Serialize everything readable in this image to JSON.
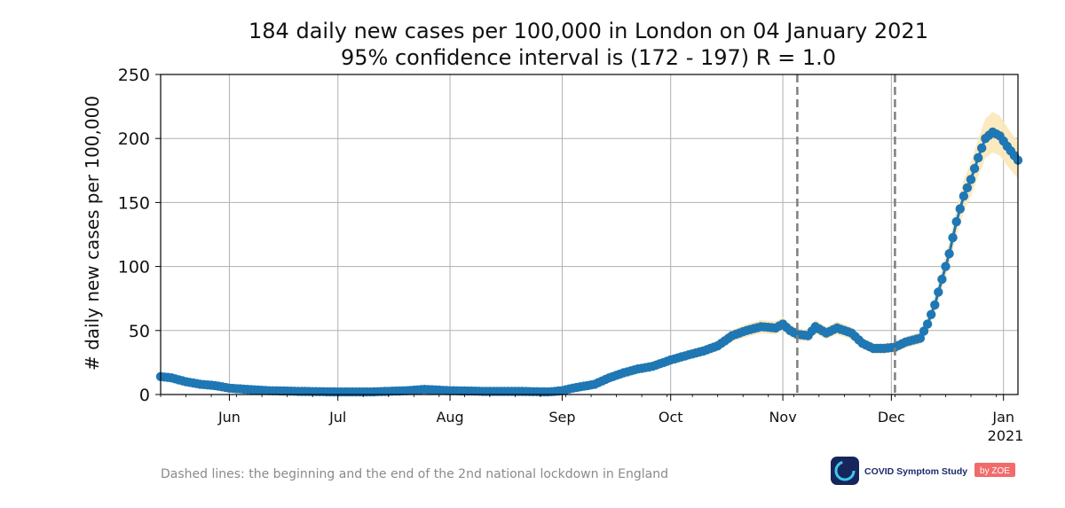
{
  "chart_data": {
    "type": "line",
    "title": "184 daily new cases per 100,000 in London on 04 January 2021",
    "subtitle": "95% confidence interval is (172 - 197) R = 1.0",
    "ylabel": "# daily new cases per 100,000",
    "xlabel": "",
    "ylim": [
      0,
      250
    ],
    "yticks": [
      0,
      50,
      100,
      150,
      200,
      250
    ],
    "xlim": [
      "2020-05-13",
      "2021-01-05"
    ],
    "xticks": [
      {
        "date": "2020-06-01",
        "label": "Jun"
      },
      {
        "date": "2020-07-01",
        "label": "Jul"
      },
      {
        "date": "2020-08-01",
        "label": "Aug"
      },
      {
        "date": "2020-09-01",
        "label": "Sep"
      },
      {
        "date": "2020-10-01",
        "label": "Oct"
      },
      {
        "date": "2020-11-01",
        "label": "Nov"
      },
      {
        "date": "2020-12-01",
        "label": "Dec"
      },
      {
        "date": "2021-01-01",
        "label": "Jan"
      }
    ],
    "xtick_year_label": "2021",
    "grid": true,
    "vlines": [
      "2020-11-05",
      "2020-12-02"
    ],
    "series": [
      {
        "color": "#1f77b4",
        "band_color": "#fbe8b8",
        "points": [
          [
            "2020-05-13",
            14
          ],
          [
            "2020-05-16",
            13
          ],
          [
            "2020-05-20",
            10
          ],
          [
            "2020-05-24",
            8
          ],
          [
            "2020-05-28",
            7
          ],
          [
            "2020-06-01",
            5
          ],
          [
            "2020-06-06",
            4
          ],
          [
            "2020-06-12",
            3
          ],
          [
            "2020-06-20",
            2.5
          ],
          [
            "2020-07-01",
            2
          ],
          [
            "2020-07-10",
            2
          ],
          [
            "2020-07-20",
            3
          ],
          [
            "2020-07-25",
            4
          ],
          [
            "2020-08-01",
            3
          ],
          [
            "2020-08-10",
            2.5
          ],
          [
            "2020-08-20",
            2.5
          ],
          [
            "2020-08-28",
            2
          ],
          [
            "2020-09-01",
            3
          ],
          [
            "2020-09-04",
            5
          ],
          [
            "2020-09-10",
            8
          ],
          [
            "2020-09-14",
            13
          ],
          [
            "2020-09-18",
            17
          ],
          [
            "2020-09-22",
            20
          ],
          [
            "2020-09-26",
            22
          ],
          [
            "2020-10-01",
            27
          ],
          [
            "2020-10-06",
            31
          ],
          [
            "2020-10-10",
            34
          ],
          [
            "2020-10-14",
            38
          ],
          [
            "2020-10-18",
            46
          ],
          [
            "2020-10-22",
            50
          ],
          [
            "2020-10-26",
            53
          ],
          [
            "2020-10-30",
            52
          ],
          [
            "2020-11-01",
            55
          ],
          [
            "2020-11-03",
            50
          ],
          [
            "2020-11-05",
            47
          ],
          [
            "2020-11-08",
            46
          ],
          [
            "2020-11-10",
            53
          ],
          [
            "2020-11-13",
            48
          ],
          [
            "2020-11-16",
            52
          ],
          [
            "2020-11-20",
            48
          ],
          [
            "2020-11-23",
            40
          ],
          [
            "2020-11-26",
            36
          ],
          [
            "2020-11-29",
            36
          ],
          [
            "2020-12-02",
            37
          ],
          [
            "2020-12-05",
            41
          ],
          [
            "2020-12-09",
            44
          ],
          [
            "2020-12-11",
            55
          ],
          [
            "2020-12-13",
            70
          ],
          [
            "2020-12-15",
            90
          ],
          [
            "2020-12-17",
            110
          ],
          [
            "2020-12-19",
            135
          ],
          [
            "2020-12-21",
            155
          ],
          [
            "2020-12-23",
            168
          ],
          [
            "2020-12-25",
            185
          ],
          [
            "2020-12-27",
            200
          ],
          [
            "2020-12-29",
            205
          ],
          [
            "2020-12-31",
            202
          ],
          [
            "2021-01-02",
            194
          ],
          [
            "2021-01-05",
            183
          ]
        ]
      }
    ]
  },
  "footer": {
    "note": "Dashed lines: the beginning and the end of the 2nd national lockdown in England",
    "logo_text": "COVID Symptom Study",
    "logo_badge": "by ZOE"
  },
  "colors": {
    "line": "#1f77b4",
    "band": "#fbe8b8",
    "grid": "#b0b0b0",
    "vline": "#7f7f7f"
  }
}
